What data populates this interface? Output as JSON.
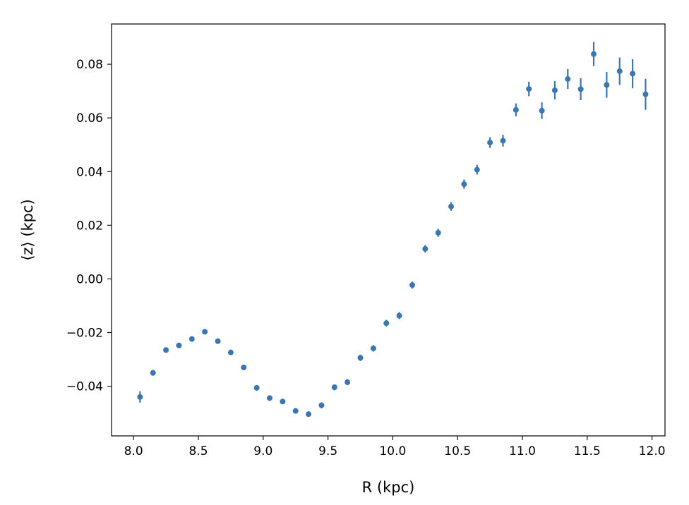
{
  "chart_data": {
    "type": "scatter",
    "xlabel": "R (kpc)",
    "ylabel": "⟨z⟩ (kpc)",
    "xlim": [
      7.83,
      12.1
    ],
    "ylim": [
      -0.0585,
      0.095
    ],
    "xticks": [
      8.0,
      8.5,
      9.0,
      9.5,
      10.0,
      10.5,
      11.0,
      11.5,
      12.0
    ],
    "xtick_labels": [
      "8.0",
      "8.5",
      "9.0",
      "9.5",
      "10.0",
      "10.5",
      "11.0",
      "11.5",
      "12.0"
    ],
    "yticks": [
      -0.04,
      -0.02,
      0.0,
      0.02,
      0.04,
      0.06,
      0.08
    ],
    "ytick_labels": [
      "−0.04",
      "−0.02",
      "0.00",
      "0.02",
      "0.04",
      "0.06",
      "0.08"
    ],
    "grid": false,
    "marker_color": "#3a76b2",
    "series": [
      {
        "x": [
          8.05,
          8.15,
          8.25,
          8.35,
          8.45,
          8.55,
          8.65,
          8.75,
          8.85,
          8.95,
          9.05,
          9.15,
          9.25,
          9.35,
          9.45,
          9.55,
          9.65,
          9.75,
          9.85,
          9.95,
          10.05,
          10.15,
          10.25,
          10.35,
          10.45,
          10.55,
          10.65,
          10.75,
          10.85,
          10.95,
          11.05,
          11.15,
          11.25,
          11.35,
          11.45,
          11.55,
          11.65,
          11.75,
          11.85,
          11.95
        ],
        "y": [
          -0.044,
          -0.035,
          -0.0265,
          -0.0248,
          -0.0224,
          -0.0197,
          -0.0232,
          -0.0274,
          -0.033,
          -0.0406,
          -0.0444,
          -0.0457,
          -0.0492,
          -0.0504,
          -0.0471,
          -0.0404,
          -0.0385,
          -0.0294,
          -0.0259,
          -0.0165,
          -0.0137,
          -0.0023,
          0.0112,
          0.0172,
          0.027,
          0.0353,
          0.0407,
          0.0508,
          0.0515,
          0.063,
          0.0708,
          0.0627,
          0.0703,
          0.0745,
          0.0707,
          0.0838,
          0.0723,
          0.0774,
          0.0765,
          0.0688
        ],
        "err": [
          0.0021,
          0.0011,
          0.0009,
          0.0008,
          0.0009,
          0.0009,
          0.001,
          0.001,
          0.001,
          0.001,
          0.001,
          0.001,
          0.001,
          0.001,
          0.0011,
          0.0011,
          0.0011,
          0.0012,
          0.0012,
          0.0012,
          0.0013,
          0.0013,
          0.0014,
          0.0015,
          0.0016,
          0.0017,
          0.0018,
          0.002,
          0.0022,
          0.0024,
          0.0027,
          0.0031,
          0.0034,
          0.0037,
          0.0041,
          0.0045,
          0.0048,
          0.0051,
          0.0054,
          0.0058
        ]
      }
    ]
  }
}
